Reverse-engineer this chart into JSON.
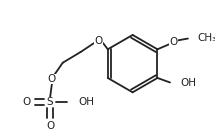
{
  "bg_color": "#ffffff",
  "line_color": "#222222",
  "line_width": 1.3,
  "font_size": 7.5,
  "figsize": [
    2.15,
    1.37
  ],
  "dpi": 100,
  "xlim": [
    0,
    215
  ],
  "ylim": [
    0,
    137
  ]
}
